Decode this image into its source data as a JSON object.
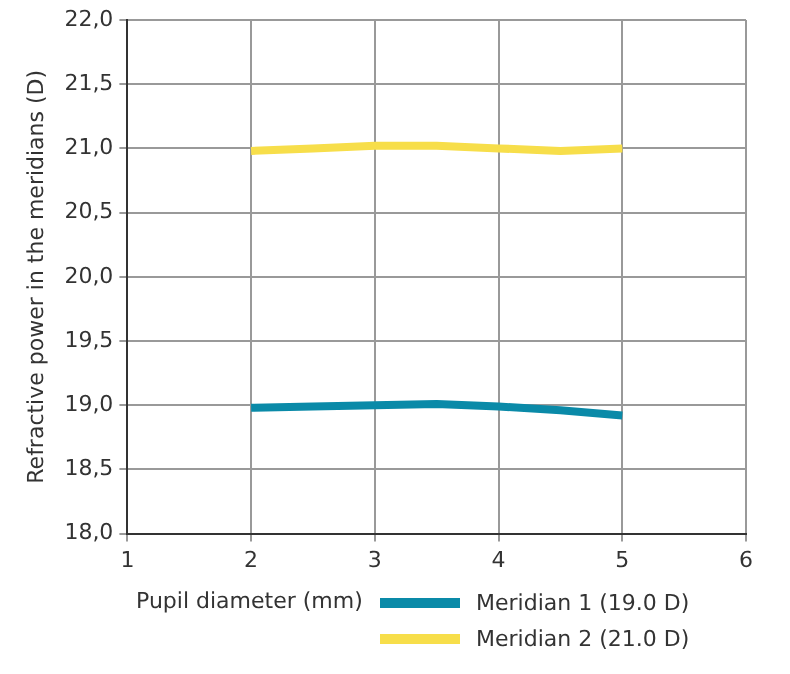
{
  "chart_data": {
    "type": "line",
    "xlabel": "Pupil diameter (mm)",
    "ylabel": "Refractive power in the meridians (D)",
    "xlim": [
      1,
      6
    ],
    "xticks": [
      1,
      2,
      3,
      4,
      5,
      6
    ],
    "ylim": [
      18,
      22
    ],
    "yticks": [
      {
        "value": 18,
        "label": "18,0"
      },
      {
        "value": 18.5,
        "label": "18,5"
      },
      {
        "value": 19,
        "label": "19,0"
      },
      {
        "value": 19.5,
        "label": "19,5"
      },
      {
        "value": 20,
        "label": "20,0"
      },
      {
        "value": 20.5,
        "label": "20,5"
      },
      {
        "value": 21,
        "label": "21,0"
      },
      {
        "value": 21.5,
        "label": "21,5"
      },
      {
        "value": 22,
        "label": "22,0"
      }
    ],
    "x": [
      2,
      2.5,
      3,
      3.5,
      4,
      4.5,
      5
    ],
    "series": [
      {
        "name": "Meridian 1 (19.0 D)",
        "color": "#0a8aa8",
        "values": [
          18.98,
          18.99,
          19.0,
          19.01,
          18.99,
          18.96,
          18.92
        ]
      },
      {
        "name": "Meridian 2 (21.0 D)",
        "color": "#f7de4a",
        "values": [
          20.98,
          21.0,
          21.02,
          21.02,
          21.0,
          20.98,
          21.0
        ]
      }
    ],
    "grid": true,
    "legend": "bottom",
    "marker": "none",
    "line_style": "solid"
  }
}
